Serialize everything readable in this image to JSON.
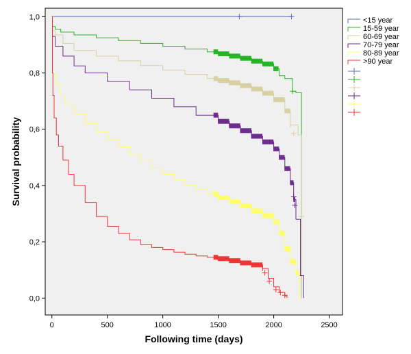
{
  "chart_data": {
    "type": "line",
    "step": true,
    "title": "",
    "xlabel": "Following time (days)",
    "ylabel": "Survival probability",
    "xlim": [
      -60,
      2620
    ],
    "ylim": [
      -0.06,
      1.03
    ],
    "xticks": [
      0,
      500,
      1000,
      1500,
      2000,
      2500
    ],
    "xtick_labels": [
      "0",
      "500",
      "1000",
      "1500",
      "2000",
      "2500"
    ],
    "yticks": [
      0,
      0.2,
      0.4,
      0.6,
      0.8,
      1.0
    ],
    "ytick_labels": [
      "0,0",
      "0,2",
      "0,4",
      "0,6",
      "0,8",
      "1,0"
    ],
    "grid": false,
    "plot_background": "#f0f0f0",
    "legend_position": "right",
    "legend_entries": [
      "<15 year",
      "15-59 year",
      "60-69 year",
      "70-79 year",
      "80-89 year",
      ">90 year"
    ],
    "series": [
      {
        "name": "<15 year",
        "color": "#5b6fb5",
        "x": [
          0,
          2160
        ],
        "y": [
          1.0,
          1.0
        ],
        "censored": [
          [
            1690,
            1.0
          ],
          [
            2160,
            1.0
          ]
        ],
        "censor_band": null
      },
      {
        "name": "15-59 year",
        "color": "#22b422",
        "x": [
          0,
          5,
          30,
          80,
          200,
          400,
          600,
          800,
          1000,
          1200,
          1400,
          1500,
          1600,
          1700,
          1800,
          1900,
          2000,
          2050,
          2100,
          2150,
          2170,
          2200,
          2250
        ],
        "y": [
          1.0,
          0.965,
          0.955,
          0.945,
          0.935,
          0.925,
          0.915,
          0.905,
          0.895,
          0.885,
          0.875,
          0.868,
          0.86,
          0.852,
          0.842,
          0.832,
          0.815,
          0.79,
          0.78,
          0.78,
          0.735,
          0.73,
          0.0
        ],
        "censored": [
          [
            2170,
            0.735
          ]
        ],
        "censor_band": [
          1460,
          2040
        ]
      },
      {
        "name": "60-69 year",
        "color": "#d8d0a0",
        "x": [
          0,
          5,
          30,
          100,
          200,
          400,
          600,
          800,
          1000,
          1200,
          1400,
          1500,
          1600,
          1700,
          1800,
          1900,
          2000,
          2100,
          2150,
          2220,
          2250
        ],
        "y": [
          1.0,
          0.95,
          0.935,
          0.905,
          0.88,
          0.86,
          0.843,
          0.826,
          0.81,
          0.795,
          0.78,
          0.773,
          0.765,
          0.755,
          0.743,
          0.728,
          0.705,
          0.665,
          0.615,
          0.58,
          0.0
        ],
        "censored": [
          [
            2180,
            0.585
          ],
          [
            2250,
            0.29
          ]
        ],
        "censor_band": [
          1460,
          2150
        ]
      },
      {
        "name": "70-79 year",
        "color": "#6a2a8a",
        "x": [
          0,
          5,
          30,
          100,
          200,
          300,
          500,
          700,
          900,
          1100,
          1300,
          1500,
          1600,
          1700,
          1800,
          1900,
          2000,
          2050,
          2100,
          2150,
          2180,
          2200,
          2240,
          2270
        ],
        "y": [
          1.0,
          0.93,
          0.895,
          0.86,
          0.825,
          0.8,
          0.77,
          0.74,
          0.71,
          0.68,
          0.65,
          0.628,
          0.612,
          0.595,
          0.575,
          0.555,
          0.53,
          0.5,
          0.46,
          0.41,
          0.35,
          0.28,
          0.08,
          0.0
        ],
        "censored": [
          [
            2180,
            0.36
          ],
          [
            2190,
            0.33
          ]
        ],
        "censor_band": [
          1460,
          2190
        ]
      },
      {
        "name": "80-89 year",
        "color": "#ffff66",
        "x": [
          0,
          5,
          30,
          70,
          120,
          200,
          300,
          400,
          500,
          600,
          700,
          800,
          900,
          1000,
          1100,
          1200,
          1300,
          1400,
          1500,
          1600,
          1700,
          1800,
          1900,
          2000,
          2050,
          2100,
          2150,
          2200,
          2230
        ],
        "y": [
          1.0,
          0.8,
          0.76,
          0.72,
          0.69,
          0.655,
          0.62,
          0.59,
          0.563,
          0.537,
          0.511,
          0.486,
          0.462,
          0.44,
          0.42,
          0.4,
          0.385,
          0.37,
          0.357,
          0.343,
          0.328,
          0.31,
          0.293,
          0.27,
          0.23,
          0.175,
          0.13,
          0.09,
          0.0
        ],
        "censored": [],
        "censor_band": [
          1460,
          2220
        ]
      },
      {
        "name": ">90 year",
        "color": "#ee3333",
        "x": [
          0,
          5,
          10,
          20,
          40,
          60,
          100,
          150,
          200,
          300,
          400,
          500,
          600,
          700,
          800,
          900,
          1000,
          1100,
          1200,
          1300,
          1400,
          1500,
          1600,
          1700,
          1800,
          1900,
          1950,
          2000,
          2050,
          2100,
          2120
        ],
        "y": [
          1.0,
          0.8,
          0.72,
          0.64,
          0.58,
          0.54,
          0.49,
          0.44,
          0.4,
          0.34,
          0.29,
          0.255,
          0.23,
          0.207,
          0.19,
          0.18,
          0.172,
          0.163,
          0.156,
          0.15,
          0.145,
          0.14,
          0.133,
          0.125,
          0.118,
          0.105,
          0.07,
          0.04,
          0.02,
          0.008,
          0.0
        ],
        "censored": [
          [
            1920,
            0.09
          ],
          [
            1960,
            0.06
          ],
          [
            2020,
            0.03
          ],
          [
            2060,
            0.02
          ],
          [
            2100,
            0.01
          ]
        ],
        "censor_band": [
          1460,
          1900
        ]
      }
    ]
  }
}
